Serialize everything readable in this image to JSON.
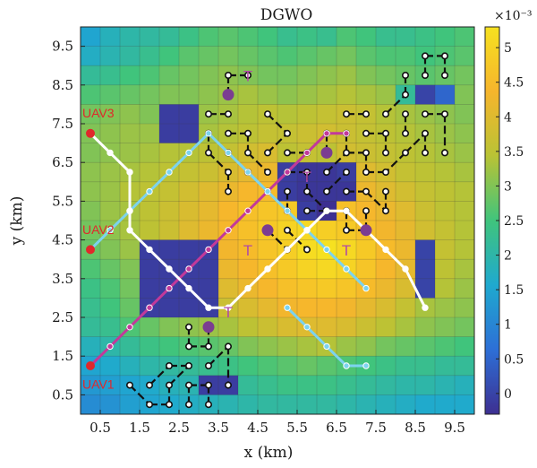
{
  "chart_data": {
    "type": "heatmap",
    "title": "DGWO",
    "xlabel": "x (km)",
    "ylabel": "y (km)",
    "xlim": [
      0,
      10
    ],
    "ylim": [
      0,
      10
    ],
    "x_ticks": [
      "0.5",
      "1.5",
      "2.5",
      "3.5",
      "4.5",
      "5.5",
      "6.5",
      "7.5",
      "8.5",
      "9.5"
    ],
    "y_ticks": [
      "0.5",
      "1.5",
      "2.5",
      "3.5",
      "4.5",
      "5.5",
      "6.5",
      "7.5",
      "8.5",
      "9.5"
    ],
    "grid": true,
    "colorbar": {
      "range": [
        -0.0003,
        0.0053
      ],
      "ticks": [
        "0",
        "0.5",
        "1",
        "1.5",
        "2",
        "2.5",
        "3",
        "3.5",
        "4",
        "4.5",
        "5"
      ],
      "exponent_label": "×10⁻³",
      "colors": [
        "#3d2f91",
        "#2d6fd6",
        "#1fa9cf",
        "#40c47c",
        "#b9c335",
        "#f6b52c",
        "#f6e120"
      ]
    },
    "threat_levels_x1e3": [
      [
        1.5,
        1.8,
        2.0,
        2.1,
        2.2,
        2.4,
        2.6,
        2.7,
        2.6,
        2.5,
        2.3,
        2.4,
        2.3,
        2.6,
        2.5,
        2.3,
        2.3,
        2.4,
        2.5,
        2.6
      ],
      [
        1.7,
        1.9,
        2.1,
        2.3,
        2.5,
        2.7,
        2.8,
        2.9,
        2.8,
        2.7,
        2.6,
        2.7,
        2.8,
        2.9,
        2.7,
        2.6,
        2.6,
        2.5,
        2.6,
        2.7
      ],
      [
        2.2,
        2.3,
        2.5,
        2.6,
        2.8,
        2.9,
        3.0,
        3.1,
        3.0,
        2.9,
        2.9,
        3.0,
        3.1,
        3.2,
        3.0,
        2.9,
        2.8,
        2.7,
        2.8,
        2.9
      ],
      [
        2.6,
        2.7,
        2.8,
        2.9,
        3.0,
        3.0,
        3.1,
        3.2,
        3.3,
        3.2,
        3.1,
        3.2,
        3.3,
        3.4,
        3.3,
        3.2,
        2.2,
        0.0,
        0.5,
        3.0
      ],
      [
        2.9,
        3.0,
        3.1,
        3.0,
        -0.1,
        -0.1,
        3.2,
        3.3,
        3.4,
        3.5,
        3.4,
        3.5,
        3.6,
        3.7,
        3.6,
        3.4,
        3.3,
        3.2,
        3.1,
        3.0
      ],
      [
        3.0,
        3.1,
        3.2,
        3.2,
        -0.1,
        -0.1,
        3.3,
        3.4,
        3.5,
        3.6,
        3.6,
        3.7,
        3.8,
        3.7,
        3.6,
        3.5,
        3.4,
        3.3,
        3.2,
        3.1
      ],
      [
        3.0,
        3.1,
        3.2,
        3.3,
        3.4,
        3.4,
        3.5,
        3.6,
        3.8,
        3.9,
        3.5,
        3.6,
        3.5,
        3.8,
        3.7,
        3.6,
        3.5,
        3.4,
        3.3,
        3.2
      ],
      [
        3.1,
        3.2,
        3.3,
        3.4,
        3.5,
        3.6,
        3.7,
        3.9,
        4.1,
        4.2,
        -0.1,
        -0.2,
        -0.2,
        -0.1,
        4.0,
        3.8,
        3.6,
        3.5,
        3.4,
        3.3
      ],
      [
        3.1,
        3.2,
        3.4,
        3.5,
        3.6,
        3.8,
        4.0,
        4.2,
        4.4,
        4.5,
        -0.1,
        -0.2,
        -0.2,
        -0.2,
        4.2,
        4.0,
        3.8,
        3.6,
        3.5,
        3.4
      ],
      [
        3.0,
        3.2,
        3.3,
        3.5,
        3.7,
        3.9,
        4.1,
        4.4,
        4.6,
        4.7,
        4.8,
        -0.1,
        -0.3,
        4.6,
        4.4,
        4.2,
        4.0,
        3.7,
        3.5,
        3.4
      ],
      [
        2.9,
        3.1,
        3.3,
        3.5,
        3.7,
        4.0,
        4.2,
        4.4,
        4.6,
        4.8,
        5.0,
        5.1,
        4.9,
        4.8,
        4.6,
        4.3,
        4.1,
        3.8,
        3.6,
        3.4
      ],
      [
        2.8,
        3.0,
        3.2,
        -0.1,
        -0.1,
        -0.1,
        -0.1,
        4.3,
        4.5,
        4.7,
        4.9,
        5.2,
        5.3,
        5.1,
        4.8,
        4.5,
        4.2,
        0.0,
        3.6,
        3.4
      ],
      [
        2.6,
        2.8,
        3.0,
        -0.1,
        -0.1,
        -0.1,
        -0.1,
        4.2,
        4.4,
        4.6,
        4.8,
        5.0,
        5.1,
        5.0,
        4.7,
        4.4,
        4.1,
        0.0,
        3.5,
        3.3
      ],
      [
        2.4,
        2.6,
        2.9,
        -0.1,
        -0.1,
        -0.1,
        -0.1,
        4.0,
        4.2,
        4.4,
        4.6,
        4.7,
        4.8,
        4.7,
        4.5,
        4.2,
        3.9,
        0.0,
        3.4,
        3.2
      ],
      [
        2.3,
        2.5,
        2.8,
        -0.1,
        -0.1,
        -0.1,
        -0.1,
        3.7,
        3.9,
        4.1,
        4.3,
        4.4,
        4.4,
        4.3,
        4.1,
        3.9,
        3.6,
        3.3,
        3.2,
        3.1
      ],
      [
        2.2,
        2.3,
        2.6,
        2.8,
        3.0,
        3.1,
        3.2,
        3.3,
        3.5,
        3.7,
        3.9,
        4.0,
        4.0,
        3.9,
        3.7,
        3.5,
        3.3,
        3.1,
        3.0,
        2.9
      ],
      [
        1.8,
        2.0,
        2.2,
        2.4,
        2.5,
        2.6,
        2.7,
        2.8,
        3.0,
        3.1,
        3.2,
        3.3,
        3.4,
        3.2,
        3.1,
        2.9,
        2.8,
        2.7,
        2.6,
        2.5
      ],
      [
        1.5,
        1.6,
        1.8,
        2.0,
        2.1,
        2.2,
        2.3,
        2.4,
        2.5,
        2.6,
        2.7,
        2.8,
        2.7,
        2.6,
        2.5,
        2.4,
        2.3,
        2.3,
        2.2,
        2.2
      ],
      [
        1.3,
        1.4,
        1.5,
        1.6,
        1.8,
        1.9,
        -0.1,
        -0.1,
        2.2,
        2.3,
        2.4,
        2.4,
        2.4,
        2.3,
        2.2,
        2.1,
        2.0,
        2.0,
        1.9,
        1.8
      ],
      [
        1.1,
        1.2,
        1.4,
        1.5,
        1.6,
        1.7,
        1.8,
        1.9,
        2.0,
        2.1,
        2.1,
        2.1,
        2.1,
        2.0,
        1.9,
        1.8,
        1.7,
        1.6,
        1.6,
        1.6
      ]
    ],
    "series": [
      {
        "name": "UAV1",
        "color": "#c2399a",
        "x": [
          0.25,
          0.75,
          1.25,
          1.75,
          2.25,
          2.75,
          3.25,
          3.75,
          4.25,
          4.75,
          5.25,
          5.75,
          6.25,
          6.75
        ],
        "y": [
          1.25,
          1.75,
          2.25,
          2.75,
          3.25,
          3.75,
          4.25,
          4.75,
          5.25,
          5.75,
          6.25,
          6.75,
          7.25,
          7.25
        ]
      },
      {
        "name": "UAV2",
        "color": "#7cd3ee",
        "x": [
          0.25,
          0.75,
          1.25,
          1.75,
          2.25,
          2.75,
          3.25,
          3.75,
          4.25,
          4.75,
          5.25,
          5.75,
          6.25,
          6.75,
          7.25
        ],
        "y": [
          4.25,
          4.75,
          5.25,
          5.75,
          6.25,
          6.75,
          7.25,
          6.75,
          6.25,
          5.75,
          5.25,
          4.75,
          4.25,
          3.75,
          3.25
        ]
      },
      {
        "name": "UAV3",
        "color": "#ffffff",
        "x": [
          0.25,
          0.75,
          1.25,
          1.25,
          1.25,
          1.75,
          2.25,
          2.75,
          3.25,
          3.75,
          4.25,
          4.75,
          5.25,
          5.75,
          6.25,
          6.75,
          7.25,
          7.75,
          8.25,
          8.75
        ],
        "y": [
          7.25,
          6.75,
          6.25,
          5.25,
          4.75,
          4.25,
          3.75,
          3.25,
          2.75,
          2.75,
          3.25,
          3.75,
          4.25,
          4.75,
          5.25,
          5.25,
          4.75,
          4.25,
          3.75,
          2.75
        ]
      },
      {
        "name": "UAV2 tail",
        "color": "#7cd3ee",
        "x": [
          5.25,
          5.75,
          6.25,
          6.75,
          7.25
        ],
        "y": [
          2.75,
          2.25,
          1.75,
          1.25,
          1.25
        ]
      }
    ],
    "uav_labels": [
      {
        "text": "UAV1",
        "x": 0.25,
        "y": 0.75
      },
      {
        "text": "UAV2",
        "x": 0.25,
        "y": 4.75
      },
      {
        "text": "UAV3",
        "x": 0.25,
        "y": 7.75
      }
    ],
    "starts": [
      {
        "x": 0.25,
        "y": 1.25
      },
      {
        "x": 0.25,
        "y": 4.25
      },
      {
        "x": 0.25,
        "y": 7.25
      }
    ],
    "targets": [
      {
        "label": "T",
        "x": 3.75,
        "y": 8.25,
        "label_x": 4.25,
        "label_y": 8.6
      },
      {
        "label": "T",
        "x": 4.75,
        "y": 4.75,
        "label_x": 4.25,
        "label_y": 4.1
      },
      {
        "label": "T",
        "x": 6.25,
        "y": 6.75,
        "label_x": 5.75,
        "label_y": 6.0
      },
      {
        "label": "T",
        "x": 7.25,
        "y": 4.75,
        "label_x": 6.75,
        "label_y": 4.1
      },
      {
        "label": "T",
        "x": 3.25,
        "y": 2.25,
        "label_x": 3.75,
        "label_y": 2.5
      }
    ],
    "obstacle_links": [
      [
        [
          1.25,
          0.75
        ],
        [
          1.75,
          0.25
        ]
      ],
      [
        [
          1.75,
          0.25
        ],
        [
          2.25,
          0.25
        ]
      ],
      [
        [
          2.25,
          0.25
        ],
        [
          2.25,
          0.75
        ]
      ],
      [
        [
          2.25,
          0.75
        ],
        [
          2.75,
          1.25
        ]
      ],
      [
        [
          2.75,
          0.75
        ],
        [
          3.25,
          0.75
        ]
      ],
      [
        [
          2.75,
          0.25
        ],
        [
          2.75,
          0.75
        ]
      ],
      [
        [
          3.25,
          0.75
        ],
        [
          3.25,
          0.25
        ]
      ],
      [
        [
          3.25,
          1.25
        ],
        [
          3.75,
          1.75
        ]
      ],
      [
        [
          3.75,
          1.75
        ],
        [
          3.75,
          0.75
        ]
      ],
      [
        [
          2.75,
          1.75
        ],
        [
          3.25,
          1.75
        ]
      ],
      [
        [
          3.25,
          1.75
        ],
        [
          3.25,
          2.25
        ]
      ],
      [
        [
          2.75,
          1.75
        ],
        [
          2.75,
          2.25
        ]
      ],
      [
        [
          1.75,
          0.75
        ],
        [
          2.25,
          1.25
        ]
      ],
      [
        [
          2.25,
          1.25
        ],
        [
          2.75,
          1.25
        ]
      ],
      [
        [
          3.75,
          8.75
        ],
        [
          3.75,
          8.25
        ]
      ],
      [
        [
          3.75,
          8.75
        ],
        [
          4.25,
          8.75
        ]
      ],
      [
        [
          3.25,
          7.75
        ],
        [
          3.75,
          7.75
        ]
      ],
      [
        [
          3.25,
          7.25
        ],
        [
          3.25,
          6.75
        ]
      ],
      [
        [
          3.25,
          6.75
        ],
        [
          3.75,
          6.25
        ]
      ],
      [
        [
          3.75,
          7.25
        ],
        [
          4.25,
          7.25
        ]
      ],
      [
        [
          4.25,
          7.25
        ],
        [
          4.25,
          6.75
        ]
      ],
      [
        [
          4.25,
          6.75
        ],
        [
          4.75,
          6.25
        ]
      ],
      [
        [
          4.75,
          6.75
        ],
        [
          5.25,
          7.25
        ]
      ],
      [
        [
          5.25,
          6.75
        ],
        [
          5.75,
          6.75
        ]
      ],
      [
        [
          3.75,
          6.75
        ],
        [
          4.25,
          6.25
        ]
      ],
      [
        [
          4.75,
          5.75
        ],
        [
          5.25,
          5.25
        ]
      ],
      [
        [
          5.25,
          5.75
        ],
        [
          5.25,
          5.25
        ]
      ],
      [
        [
          5.75,
          5.75
        ],
        [
          6.25,
          5.25
        ]
      ],
      [
        [
          5.25,
          4.75
        ],
        [
          5.75,
          4.25
        ]
      ],
      [
        [
          4.75,
          4.75
        ],
        [
          5.25,
          4.25
        ]
      ],
      [
        [
          5.75,
          5.25
        ],
        [
          6.25,
          5.25
        ]
      ],
      [
        [
          6.25,
          5.75
        ],
        [
          6.75,
          6.25
        ]
      ],
      [
        [
          5.75,
          6.25
        ],
        [
          5.75,
          5.75
        ]
      ],
      [
        [
          6.25,
          6.25
        ],
        [
          6.75,
          6.75
        ]
      ],
      [
        [
          6.75,
          6.75
        ],
        [
          7.25,
          6.75
        ]
      ],
      [
        [
          7.25,
          6.75
        ],
        [
          7.25,
          6.25
        ]
      ],
      [
        [
          7.25,
          6.25
        ],
        [
          7.75,
          6.25
        ]
      ],
      [
        [
          6.75,
          5.75
        ],
        [
          7.25,
          5.75
        ]
      ],
      [
        [
          7.25,
          5.75
        ],
        [
          7.75,
          5.25
        ]
      ],
      [
        [
          7.75,
          5.75
        ],
        [
          7.75,
          5.25
        ]
      ],
      [
        [
          6.75,
          4.75
        ],
        [
          7.25,
          4.75
        ]
      ],
      [
        [
          6.75,
          7.25
        ],
        [
          6.75,
          6.75
        ]
      ],
      [
        [
          6.75,
          7.75
        ],
        [
          7.25,
          7.75
        ]
      ],
      [
        [
          7.25,
          7.25
        ],
        [
          7.75,
          7.25
        ]
      ],
      [
        [
          7.75,
          7.25
        ],
        [
          7.75,
          6.75
        ]
      ],
      [
        [
          7.75,
          7.75
        ],
        [
          8.25,
          8.25
        ]
      ],
      [
        [
          8.25,
          7.75
        ],
        [
          8.25,
          7.25
        ]
      ],
      [
        [
          8.25,
          6.75
        ],
        [
          8.75,
          7.25
        ]
      ],
      [
        [
          8.75,
          7.75
        ],
        [
          9.25,
          7.75
        ]
      ],
      [
        [
          9.25,
          7.75
        ],
        [
          9.25,
          6.75
        ]
      ],
      [
        [
          8.75,
          9.25
        ],
        [
          9.25,
          9.25
        ]
      ],
      [
        [
          9.25,
          9.25
        ],
        [
          9.25,
          8.75
        ]
      ],
      [
        [
          8.75,
          9.25
        ],
        [
          8.75,
          8.75
        ]
      ],
      [
        [
          8.25,
          8.75
        ],
        [
          8.25,
          8.25
        ]
      ],
      [
        [
          8.75,
          7.25
        ],
        [
          8.75,
          6.75
        ]
      ],
      [
        [
          8.25,
          6.75
        ],
        [
          7.75,
          6.25
        ]
      ],
      [
        [
          4.75,
          7.75
        ],
        [
          5.25,
          7.25
        ]
      ],
      [
        [
          3.75,
          6.25
        ],
        [
          3.75,
          5.75
        ]
      ],
      [
        [
          6.25,
          7.25
        ],
        [
          6.25,
          6.75
        ]
      ],
      [
        [
          5.25,
          6.25
        ],
        [
          5.75,
          6.25
        ]
      ],
      [
        [
          6.75,
          5.25
        ],
        [
          6.75,
          4.75
        ]
      ],
      [
        [
          7.25,
          5.25
        ],
        [
          7.25,
          4.75
        ]
      ]
    ]
  }
}
